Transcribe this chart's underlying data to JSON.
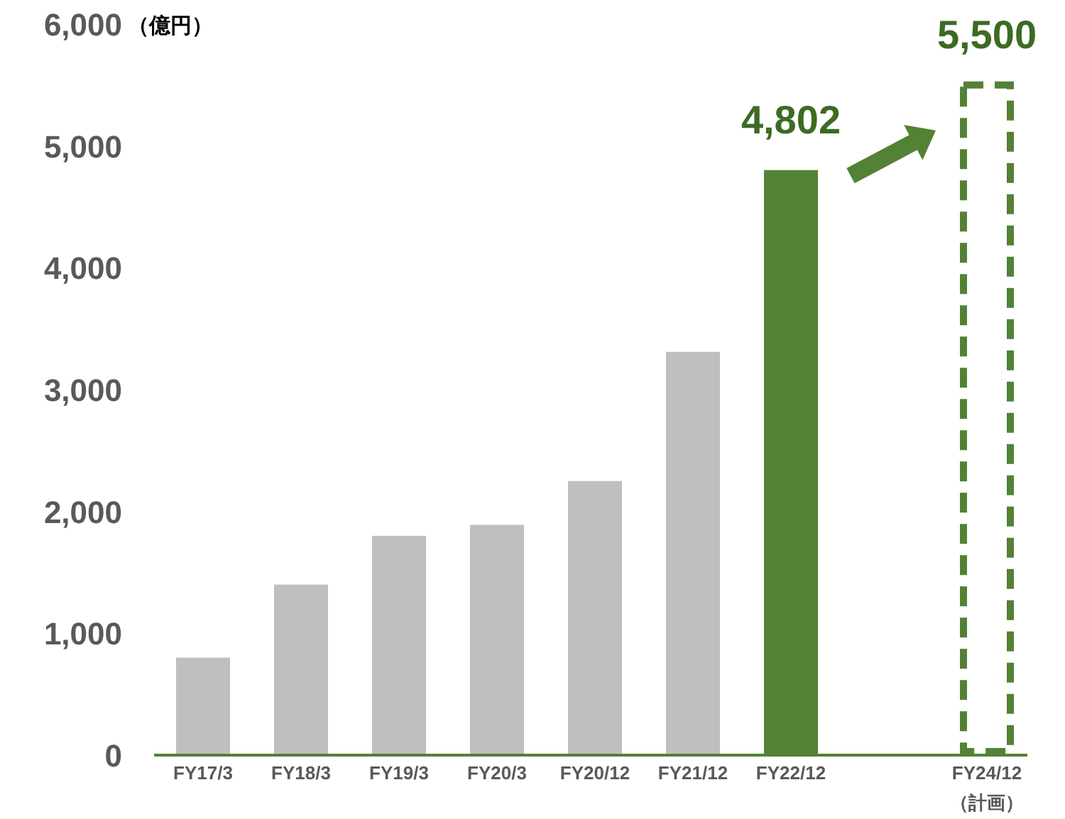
{
  "chart_data": {
    "type": "bar",
    "ylabel": "（億円）",
    "categories": [
      "FY17/3",
      "FY18/3",
      "FY19/3",
      "FY20/3",
      "FY20/12",
      "FY21/12",
      "FY22/12",
      null,
      "FY24/12\n（計画）"
    ],
    "series": [
      {
        "colors": [
          "#bfbfbf",
          "#bfbfbf",
          "#bfbfbf",
          "#bfbfbf",
          "#bfbfbf",
          "#bfbfbf",
          "#538135",
          null,
          null
        ],
        "values": [
          800,
          1400,
          1800,
          1890,
          2250,
          3310,
          4802,
          null,
          null
        ],
        "value_labels": [
          null,
          null,
          null,
          null,
          null,
          null,
          "4,802",
          null,
          null
        ]
      },
      {
        "color": "#538135",
        "line_style": "dashed",
        "values": [
          null,
          null,
          null,
          null,
          null,
          null,
          null,
          null,
          5500
        ],
        "value_labels": [
          null,
          null,
          null,
          null,
          null,
          null,
          null,
          null,
          "5,500"
        ]
      }
    ],
    "ylim": [
      0,
      6000
    ],
    "yticks": [
      {
        "value": 0,
        "label": "0"
      },
      {
        "value": 1000,
        "label": "1,000"
      },
      {
        "value": 2000,
        "label": "2,000"
      },
      {
        "value": 3000,
        "label": "3,000"
      },
      {
        "value": 4000,
        "label": "4,000"
      },
      {
        "value": 5000,
        "label": "5,000"
      },
      {
        "value": 6000,
        "label": "6,000"
      }
    ],
    "grid": false
  }
}
